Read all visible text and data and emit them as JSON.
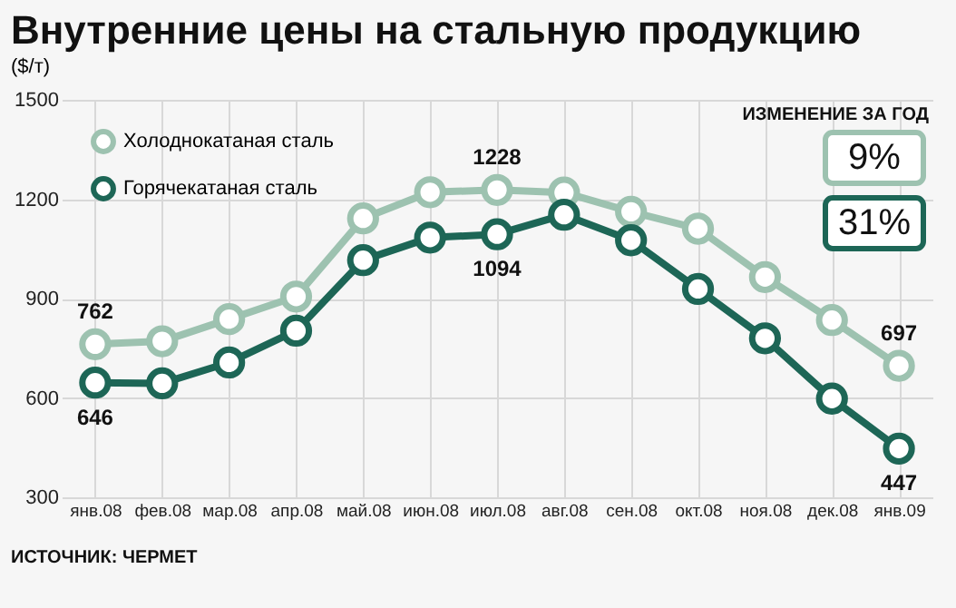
{
  "chart_data": {
    "type": "line",
    "title": "Внутренние цены на стальную продукцию",
    "subtitle": "($/т)",
    "categories": [
      "янв.08",
      "фев.08",
      "мар.08",
      "апр.08",
      "май.08",
      "июн.08",
      "июл.08",
      "авг.08",
      "сен.08",
      "окт.08",
      "ноя.08",
      "дек.08",
      "янв.09"
    ],
    "series": [
      {
        "name": "Холоднокатаная сталь",
        "color": "#9dc2b0",
        "values": [
          762,
          771,
          838,
          906,
          1142,
          1221,
          1228,
          1220,
          1162,
          1111,
          965,
          835,
          697
        ],
        "value_labels": [
          "762",
          null,
          null,
          null,
          null,
          null,
          "1228",
          null,
          null,
          null,
          null,
          null,
          "697"
        ]
      },
      {
        "name": "Горячекатаная сталь",
        "color": "#1d6656",
        "values": [
          646,
          644,
          707,
          803,
          1016,
          1084,
          1094,
          1153,
          1076,
          929,
          780,
          598,
          447
        ],
        "value_labels": [
          "646",
          null,
          null,
          null,
          null,
          null,
          "1094",
          null,
          null,
          null,
          null,
          null,
          "447"
        ]
      }
    ],
    "ylim": [
      300,
      1500
    ],
    "yticks": [
      300,
      600,
      900,
      1200,
      1500
    ],
    "grid": true,
    "legend": "top left",
    "marker": "circle",
    "line_style": "solid",
    "annotations": [
      "ИЗМЕНЕНИЕ ЗА ГОД",
      "9%",
      "31%",
      "ИСТОЧНИК: ЧЕРМЕТ"
    ]
  }
}
